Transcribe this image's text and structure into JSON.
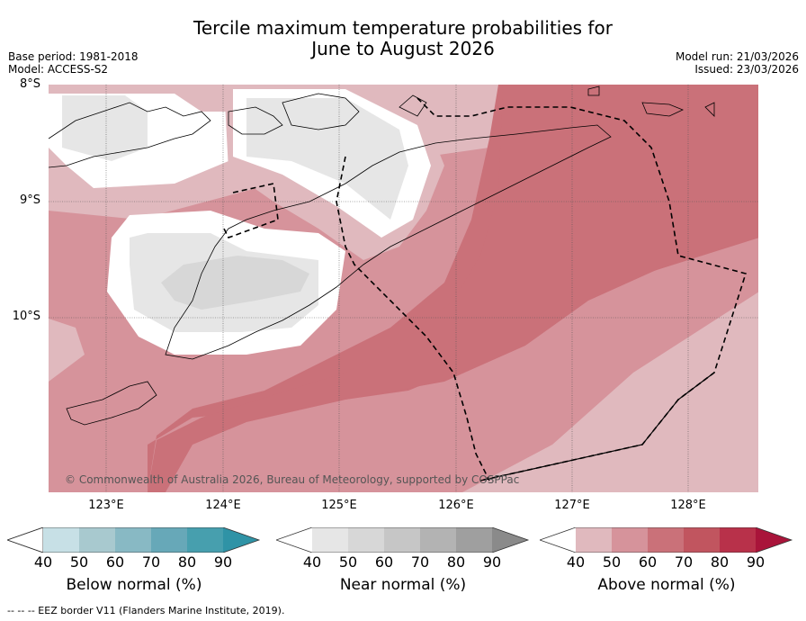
{
  "title": {
    "line1": "Tercile maximum temperature probabilities for",
    "line2": "June to August 2026"
  },
  "meta": {
    "base_period": "Base period: 1981-2018",
    "model": "Model: ACCESS-S2",
    "model_run": "Model run: 21/03/2026",
    "issued": "Issued: 23/03/2026"
  },
  "map": {
    "lat_labels": [
      "8°S",
      "9°S",
      "10°S"
    ],
    "lon_labels": [
      "123°E",
      "124°E",
      "125°E",
      "126°E",
      "127°E",
      "128°E"
    ],
    "credit": "© Commonwealth of Australia 2026, Bureau of Meteorology, supported by COSPPac"
  },
  "colorbars": [
    {
      "title": "Below normal (%)",
      "ticks": [
        "40",
        "50",
        "60",
        "70",
        "80",
        "90"
      ],
      "colors": [
        "#ffffff",
        "#c7e0e6",
        "#a8c9cf",
        "#88b9c4",
        "#67a8b8",
        "#479fae",
        "#2f93a6"
      ]
    },
    {
      "title": "Near normal (%)",
      "ticks": [
        "40",
        "50",
        "60",
        "70",
        "80",
        "90"
      ],
      "colors": [
        "#ffffff",
        "#e6e6e6",
        "#d7d7d7",
        "#c6c6c6",
        "#b3b3b3",
        "#9f9f9f",
        "#8a8a8a"
      ]
    },
    {
      "title": "Above normal (%)",
      "ticks": [
        "40",
        "50",
        "60",
        "70",
        "80",
        "90"
      ],
      "colors": [
        "#ffffff",
        "#e0b9be",
        "#d6939b",
        "#ca7179",
        "#c1555f",
        "#b8314a",
        "#a9143a"
      ]
    }
  ],
  "footer": "-- -- -- EEZ border V11 (Flanders Marine Institute, 2019)."
}
